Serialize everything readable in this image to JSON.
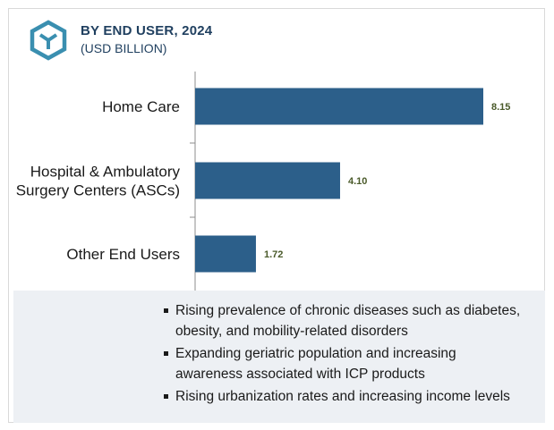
{
  "header": {
    "title": "BY END USER, 2024",
    "subtitle": "(USD BILLION)"
  },
  "colors": {
    "bar": "#2c5f8a",
    "accent": "#3a8fb0",
    "value_label": "#4a5a2a"
  },
  "logo_icon": "hexagon-cube-icon",
  "chart_data": {
    "type": "bar",
    "orientation": "horizontal",
    "categories": [
      [
        "Home Care"
      ],
      [
        "Hospital & Ambulatory",
        "Surgery Centers (ASCs)"
      ],
      [
        "Other End Users"
      ]
    ],
    "values": [
      8.15,
      4.1,
      1.72
    ],
    "value_labels": [
      "8.15",
      "4.10",
      "1.72"
    ],
    "title": "BY END USER, 2024",
    "xlabel": "",
    "ylabel": "",
    "xlim": [
      0,
      10
    ],
    "grid": false
  },
  "notes": [
    "Rising prevalence of chronic diseases such as diabetes, obesity, and mobility-related disorders",
    "Expanding geriatric population and increasing awareness associated with ICP products",
    "Rising urbanization rates and increasing income levels"
  ]
}
